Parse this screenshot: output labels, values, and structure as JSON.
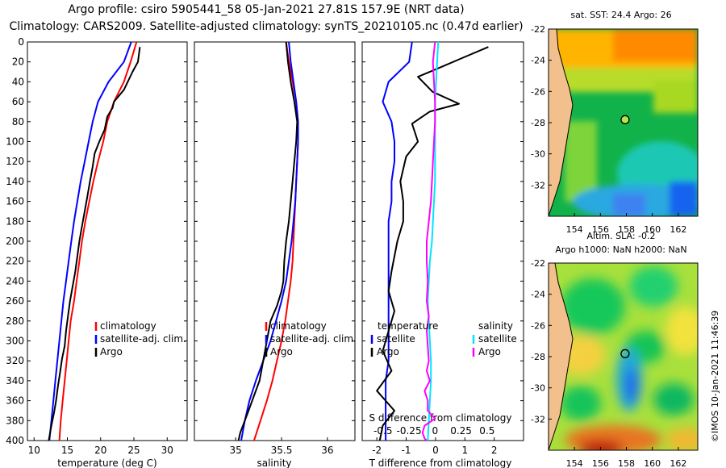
{
  "titles": {
    "line1": "Argo profile: csiro 5905441_58 05-Jan-2021 27.81S 157.9E (NRT data)",
    "line2": "Climatology: CARS2009. Satellite-adjusted climatology: synTS_20210105.nc (0.47d earlier)"
  },
  "timestamp": "©IMOS 10-Jan-2021 11:46:39",
  "colors": {
    "climatology": "#ff0000",
    "satellite": "#0000ff",
    "argo": "#000000",
    "sat_sal_diff": "#00e5ff",
    "argo_sal_diff": "#ff00ff",
    "land": "#f2c08c"
  },
  "chart_data": [
    {
      "type": "line",
      "id": "temperature",
      "xlabel": "temperature (deg C)",
      "ylabel": "",
      "xlim": [
        9,
        33
      ],
      "ylim": [
        400,
        0
      ],
      "xticks": [
        "10",
        "15",
        "20",
        "25",
        "30"
      ],
      "yticks": [
        "0",
        "20",
        "40",
        "60",
        "80",
        "100",
        "120",
        "140",
        "160",
        "180",
        "200",
        "220",
        "240",
        "260",
        "280",
        "300",
        "320",
        "340",
        "360",
        "380",
        "400"
      ],
      "legend": [
        "climatology",
        "satellite-adj. clim.",
        "Argo"
      ],
      "series": [
        {
          "name": "climatology",
          "x": [
            25.4,
            24.5,
            23.5,
            22.0,
            21.0,
            20.4,
            19.6,
            18.9,
            18.3,
            17.7,
            17.2,
            16.8,
            16.4,
            16.0,
            15.5,
            15.2,
            14.9,
            14.6,
            14.3,
            14.0,
            13.8
          ],
          "y": [
            0,
            20,
            40,
            60,
            80,
            100,
            120,
            140,
            160,
            180,
            200,
            220,
            240,
            260,
            280,
            300,
            320,
            340,
            360,
            380,
            400
          ]
        },
        {
          "name": "satellite-adj. clim.",
          "x": [
            24.6,
            23.5,
            21.2,
            19.6,
            18.8,
            18.2,
            17.6,
            17.0,
            16.5,
            16.0,
            15.6,
            15.2,
            14.8,
            14.4,
            14.1,
            13.8,
            13.5,
            13.2,
            12.9,
            12.6,
            12.3
          ],
          "y": [
            0,
            20,
            40,
            60,
            80,
            100,
            120,
            140,
            160,
            180,
            200,
            220,
            240,
            260,
            280,
            300,
            320,
            340,
            360,
            380,
            400
          ]
        },
        {
          "name": "Argo",
          "x": [
            25.9,
            25.7,
            25.6,
            24.8,
            23.5,
            22.0,
            21.8,
            21.0,
            20.6,
            19.8,
            19.1,
            18.8,
            18.4,
            18.0,
            17.6,
            17.2,
            16.8,
            16.5,
            16.2,
            15.8,
            15.4,
            15.1,
            14.8,
            14.6,
            14.2,
            13.9,
            13.6,
            13.3,
            13.0,
            12.6,
            12.2
          ],
          "y": [
            5,
            15,
            20,
            30,
            48,
            60,
            66,
            75,
            88,
            100,
            112,
            125,
            140,
            155,
            170,
            185,
            200,
            215,
            230,
            245,
            260,
            275,
            290,
            305,
            318,
            332,
            345,
            360,
            372,
            385,
            400
          ]
        }
      ]
    },
    {
      "type": "line",
      "id": "salinity",
      "xlabel": "salinity",
      "ylabel": "",
      "xlim": [
        34.55,
        36.3
      ],
      "ylim": [
        400,
        0
      ],
      "xticks": [
        "35",
        "35.5",
        "36"
      ],
      "legend": [
        "climatology",
        "satellite-adj. clim.",
        "Argo"
      ],
      "series": [
        {
          "name": "climatology",
          "x": [
            35.55,
            35.58,
            35.62,
            35.66,
            35.68,
            35.68,
            35.67,
            35.66,
            35.65,
            35.64,
            35.63,
            35.62,
            35.6,
            35.57,
            35.54,
            35.5,
            35.45,
            35.4,
            35.34,
            35.27,
            35.2
          ],
          "y": [
            0,
            20,
            40,
            60,
            80,
            100,
            120,
            140,
            160,
            180,
            200,
            220,
            240,
            260,
            280,
            300,
            320,
            340,
            360,
            380,
            400
          ]
        },
        {
          "name": "satellite-adj. clim.",
          "x": [
            35.58,
            35.6,
            35.63,
            35.66,
            35.68,
            35.68,
            35.67,
            35.66,
            35.65,
            35.63,
            35.61,
            35.58,
            35.55,
            35.5,
            35.44,
            35.38,
            35.3,
            35.22,
            35.15,
            35.1,
            35.06
          ],
          "y": [
            0,
            20,
            40,
            60,
            80,
            100,
            120,
            140,
            160,
            180,
            200,
            220,
            240,
            260,
            280,
            300,
            320,
            340,
            360,
            380,
            400
          ]
        },
        {
          "name": "Argo",
          "x": [
            35.55,
            35.57,
            35.6,
            35.64,
            35.67,
            35.66,
            35.64,
            35.62,
            35.6,
            35.58,
            35.55,
            35.53,
            35.52,
            35.5,
            35.45,
            35.38,
            35.34,
            35.3,
            35.26,
            35.2,
            35.14,
            35.1,
            35.05,
            35.03
          ],
          "y": [
            0,
            20,
            40,
            60,
            80,
            100,
            120,
            140,
            160,
            180,
            200,
            220,
            240,
            250,
            265,
            280,
            300,
            320,
            340,
            355,
            370,
            380,
            392,
            400
          ]
        }
      ]
    },
    {
      "type": "line",
      "id": "differences",
      "xlabel": "T difference from climatology",
      "xlim_T": [
        -2.5,
        3.0
      ],
      "xticks_T": [
        "-2",
        "-1",
        "0",
        "1",
        "2"
      ],
      "top_axis_label": "S difference from climatology",
      "xlim_S": [
        -0.7,
        0.85
      ],
      "xticks_S": [
        "-0.5",
        "-0.25",
        "0",
        "0.25",
        "0.5"
      ],
      "ylim": [
        400,
        0
      ],
      "legend_temperature": {
        "title": "temperature",
        "items": [
          "satellite",
          "Argo"
        ]
      },
      "legend_salinity": {
        "title": "salinity",
        "items": [
          "satellite",
          "Argo"
        ]
      },
      "series": [
        {
          "name": "temperature satellite",
          "x": [
            -0.8,
            -0.9,
            -1.6,
            -1.8,
            -1.5,
            -1.4,
            -1.4,
            -1.5,
            -1.5,
            -1.6,
            -1.6,
            -1.6,
            -1.6,
            -1.6,
            -1.6,
            -1.6,
            -1.6,
            -1.7,
            -1.7,
            -1.7,
            -1.7
          ],
          "y": [
            0,
            20,
            40,
            60,
            80,
            100,
            120,
            140,
            160,
            180,
            200,
            220,
            240,
            260,
            280,
            300,
            320,
            340,
            360,
            380,
            400
          ]
        },
        {
          "name": "temperature Argo",
          "x": [
            1.8,
            1.0,
            0.2,
            -0.6,
            -0.1,
            0.8,
            -0.2,
            -0.8,
            -0.6,
            -1.0,
            -1.2,
            -1.1,
            -1.1,
            -1.3,
            -1.5,
            -1.6,
            -1.4,
            -1.6,
            -1.8,
            -1.5,
            -2.0,
            -1.4,
            -1.8,
            -1.9
          ],
          "y": [
            5,
            15,
            25,
            35,
            50,
            62,
            70,
            82,
            100,
            115,
            140,
            160,
            180,
            200,
            230,
            250,
            270,
            290,
            310,
            330,
            350,
            370,
            385,
            400
          ]
        },
        {
          "name": "salinity satellite",
          "x": [
            0.03,
            0.02,
            0.01,
            0.0,
            0.0,
            0.0,
            0.0,
            0.0,
            -0.01,
            -0.02,
            -0.03,
            -0.05,
            -0.06,
            -0.07,
            -0.06,
            -0.05,
            -0.04,
            -0.04,
            -0.05,
            -0.06,
            -0.07
          ],
          "y": [
            0,
            20,
            40,
            60,
            80,
            100,
            120,
            140,
            160,
            180,
            200,
            220,
            240,
            260,
            280,
            300,
            320,
            340,
            360,
            380,
            400
          ]
        },
        {
          "name": "salinity Argo",
          "x": [
            0.0,
            -0.02,
            -0.01,
            0.0,
            0.0,
            -0.01,
            -0.02,
            -0.03,
            -0.04,
            -0.06,
            -0.08,
            -0.08,
            -0.07,
            -0.08,
            -0.06,
            -0.08,
            -0.07,
            -0.06,
            -0.08,
            -0.05,
            -0.1,
            -0.07,
            -0.07,
            0.0,
            -0.1,
            -0.12,
            -0.1,
            -0.08
          ],
          "y": [
            0,
            20,
            40,
            60,
            80,
            100,
            120,
            140,
            160,
            180,
            200,
            220,
            240,
            260,
            275,
            290,
            305,
            320,
            330,
            340,
            350,
            360,
            370,
            378,
            385,
            392,
            398,
            400
          ]
        }
      ]
    },
    {
      "type": "heatmap",
      "id": "sst_map",
      "title": "sat. SST: 24.4 Argo: 26",
      "xlim": [
        152,
        163.5
      ],
      "ylim": [
        -34,
        -22
      ],
      "xticks": [
        "154",
        "156",
        "158",
        "160",
        "162"
      ],
      "yticks": [
        "-22",
        "-24",
        "-26",
        "-28",
        "-30",
        "-32"
      ],
      "argo_position": {
        "lon": 157.9,
        "lat": -27.81
      }
    },
    {
      "type": "heatmap",
      "id": "sla_map",
      "title": "Altim. SLA: -0.2",
      "subtitle": "Argo h1000: NaN h2000: NaN",
      "xlim": [
        152,
        163.5
      ],
      "ylim": [
        -34,
        -22
      ],
      "xticks": [
        "154",
        "156",
        "158",
        "160",
        "162"
      ],
      "yticks": [
        "-22",
        "-24",
        "-26",
        "-28",
        "-30",
        "-32"
      ],
      "argo_position": {
        "lon": 157.9,
        "lat": -27.81
      }
    }
  ]
}
